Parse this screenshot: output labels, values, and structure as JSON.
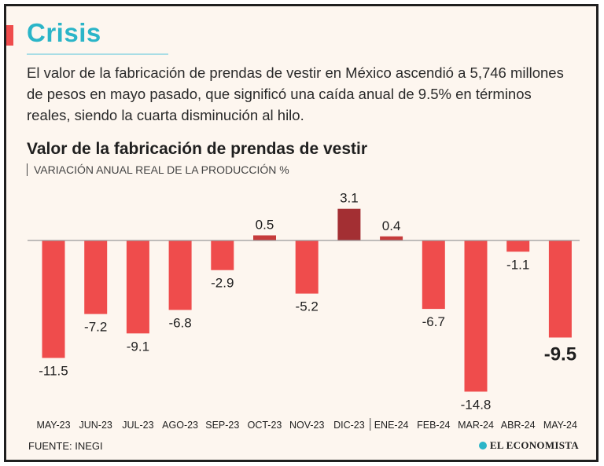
{
  "header": {
    "headline": "Crisis",
    "deck": "El valor de la fabricación de prendas de vestir en México ascendió a 5,746 millones de pesos en mayo pasado, que significó una caída anual de 9.5% en términos reales, siendo la cuarta disminución al hilo."
  },
  "chart_data": {
    "type": "bar",
    "title": "Valor de la fabricación de prendas de vestir",
    "subtitle": "VARIACIÓN ANUAL REAL DE LA PRODUCCIÓN %",
    "categories": [
      "MAY-23",
      "JUN-23",
      "JUL-23",
      "AGO-23",
      "SEP-23",
      "OCT-23",
      "NOV-23",
      "DIC-23",
      "ENE-24",
      "FEB-24",
      "MAR-24",
      "ABR-24",
      "MAY-24"
    ],
    "values": [
      -11.5,
      -7.2,
      -9.1,
      -6.8,
      -2.9,
      0.5,
      -5.2,
      3.1,
      0.4,
      -6.7,
      -14.8,
      -1.1,
      -9.5
    ],
    "value_labels": [
      "-11.5",
      "-7.2",
      "-9.1",
      "-6.8",
      "-2.9",
      "0.5",
      "-5.2",
      "3.1",
      "0.4",
      "-6.7",
      "-14.8",
      "-1.1",
      "-9.5"
    ],
    "highlight_index": 12,
    "year_separator_after_index": 7,
    "colors": {
      "negative": "#ef4c4c",
      "positive": "#c63b3b",
      "highlight_max": "#a32f33",
      "axis": "#9a9a9a"
    },
    "grid": false,
    "legend": "none"
  },
  "footer": {
    "source": "FUENTE: INEGI",
    "brand": "EL ECONOMISTA",
    "brand_icon": "globe-icon"
  }
}
